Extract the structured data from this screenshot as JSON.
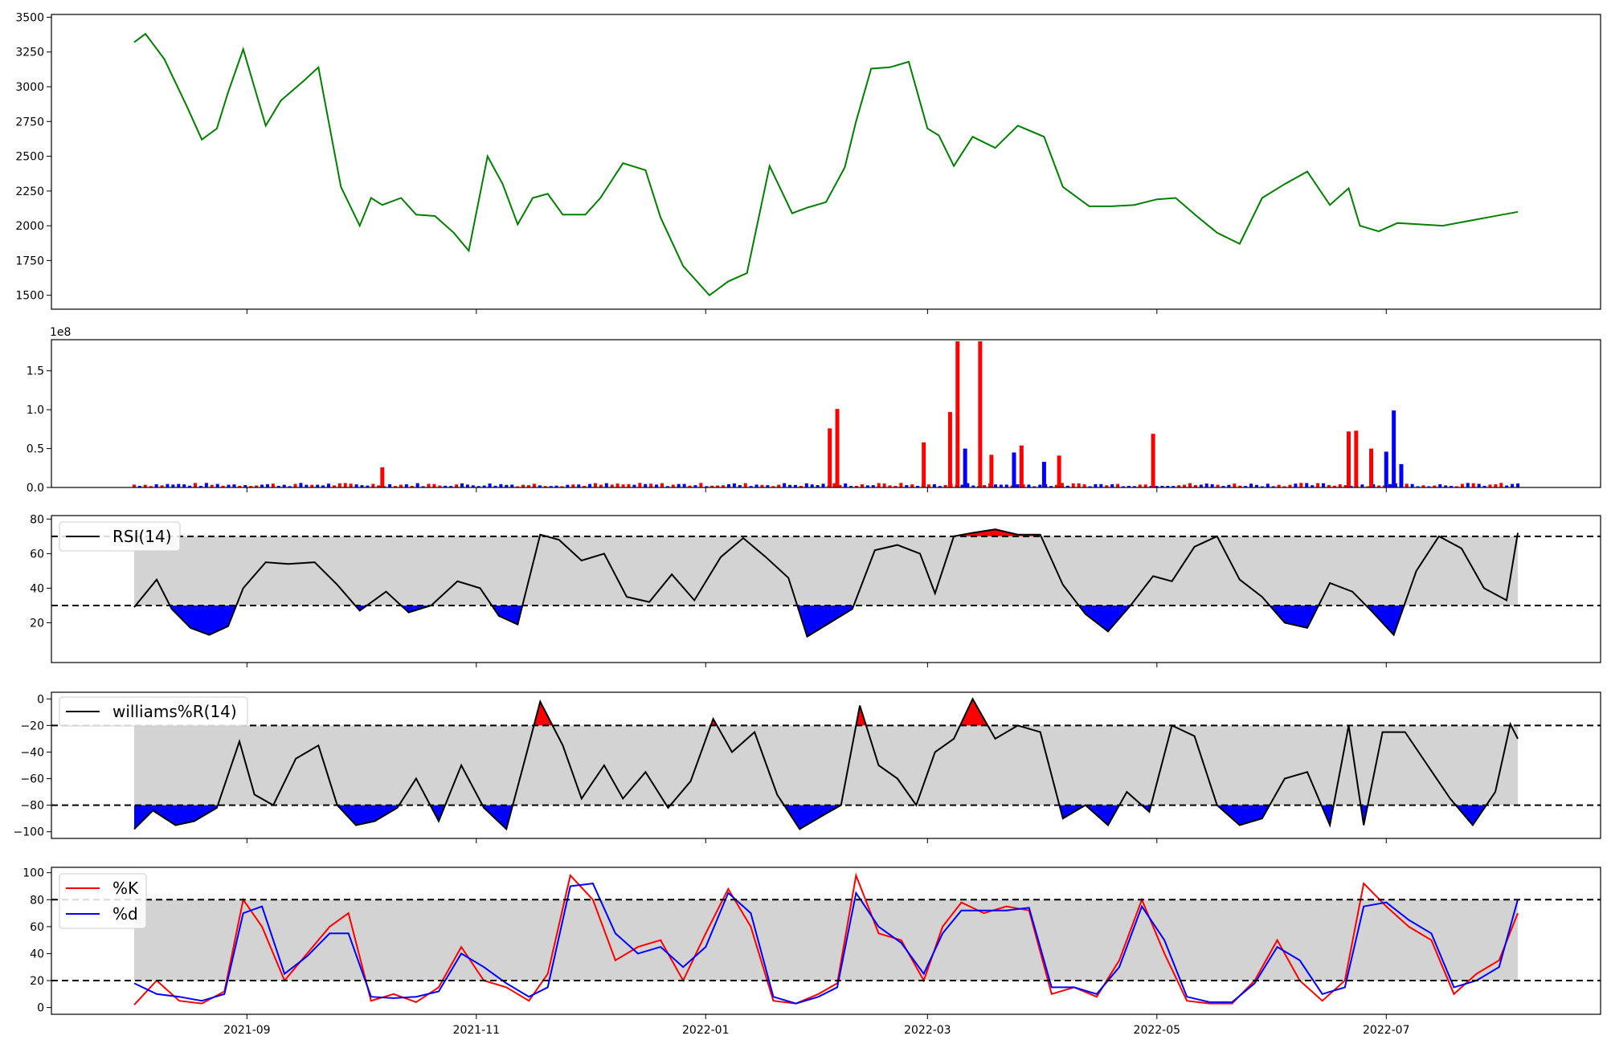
{
  "chart_data": [
    {
      "id": "price",
      "type": "line",
      "series": [
        {
          "color": "#008000"
        }
      ],
      "x_start": "2021-08-02",
      "x_end": "2022-08-05",
      "x_samples": [
        "2021-08-02",
        "2021-08-05",
        "2021-08-10",
        "2021-08-16",
        "2021-08-20",
        "2021-08-24",
        "2021-08-27",
        "2021-08-31",
        "2021-09-06",
        "2021-09-10",
        "2021-09-16",
        "2021-09-20",
        "2021-09-26",
        "2021-10-01",
        "2021-10-04",
        "2021-10-07",
        "2021-10-12",
        "2021-10-16",
        "2021-10-21",
        "2021-10-26",
        "2021-10-30",
        "2021-11-04",
        "2021-11-08",
        "2021-11-12",
        "2021-11-16",
        "2021-11-20",
        "2021-11-24",
        "2021-11-30",
        "2021-12-04",
        "2021-12-10",
        "2021-12-16",
        "2021-12-20",
        "2021-12-26",
        "2022-01-02",
        "2022-01-07",
        "2022-01-12",
        "2022-01-18",
        "2022-01-24",
        "2022-01-28",
        "2022-02-02",
        "2022-02-07",
        "2022-02-10",
        "2022-02-14",
        "2022-02-19",
        "2022-02-24",
        "2022-03-01",
        "2022-03-04",
        "2022-03-08",
        "2022-03-13",
        "2022-03-19",
        "2022-03-25",
        "2022-04-01",
        "2022-04-06",
        "2022-04-13",
        "2022-04-19",
        "2022-04-25",
        "2022-05-01",
        "2022-05-06",
        "2022-05-12",
        "2022-05-17",
        "2022-05-23",
        "2022-05-29",
        "2022-06-04",
        "2022-06-10",
        "2022-06-16",
        "2022-06-21",
        "2022-06-24",
        "2022-06-29",
        "2022-07-04",
        "2022-07-10",
        "2022-07-16",
        "2022-07-22",
        "2022-07-28",
        "2022-08-05"
      ],
      "values": [
        3320,
        3380,
        3200,
        2860,
        2620,
        2700,
        2960,
        3270,
        2720,
        2900,
        3040,
        3140,
        2280,
        2000,
        2200,
        2150,
        2200,
        2080,
        2070,
        1950,
        1820,
        2500,
        2300,
        2010,
        2200,
        2230,
        2080,
        2080,
        2200,
        2450,
        2400,
        2060,
        1710,
        1500,
        1600,
        1660,
        2430,
        2090,
        2130,
        2170,
        2420,
        2750,
        3130,
        3140,
        3180,
        2700,
        2650,
        2430,
        2640,
        2560,
        2720,
        2640,
        2280,
        2140,
        2140,
        2150,
        2190,
        2200,
        2060,
        1950,
        1870,
        2200,
        2300,
        2390,
        2150,
        2270,
        2000,
        1960,
        2020,
        2010,
        2000,
        2030,
        2060,
        2100
      ],
      "ylim": [
        1400,
        3520
      ],
      "yticks": [
        "1500",
        "1750",
        "2000",
        "2250",
        "2500",
        "2750",
        "3000",
        "3250",
        "3500"
      ],
      "ytick_values": [
        1500,
        1750,
        2000,
        2250,
        2500,
        2750,
        3000,
        3250,
        3500
      ]
    },
    {
      "id": "volume",
      "type": "bar",
      "colors": {
        "up": "#ff0000",
        "down": "#0000ff"
      },
      "offset_label": "1e8",
      "x_start": "2021-08-02",
      "x_end": "2022-08-05",
      "bar_count": 250,
      "spikes": [
        {
          "x": "2021-10-07",
          "value": 0.26,
          "color": "#ff0000"
        },
        {
          "x": "2022-02-03",
          "value": 0.76,
          "color": "#ff0000"
        },
        {
          "x": "2022-02-05",
          "value": 1.01,
          "color": "#ff0000"
        },
        {
          "x": "2022-02-28",
          "value": 0.58,
          "color": "#ff0000"
        },
        {
          "x": "2022-03-07",
          "value": 0.97,
          "color": "#ff0000"
        },
        {
          "x": "2022-03-09",
          "value": 1.88,
          "color": "#ff0000"
        },
        {
          "x": "2022-03-11",
          "value": 0.5,
          "color": "#0000ff"
        },
        {
          "x": "2022-03-15",
          "value": 1.88,
          "color": "#ff0000"
        },
        {
          "x": "2022-03-18",
          "value": 0.42,
          "color": "#ff0000"
        },
        {
          "x": "2022-03-24",
          "value": 0.45,
          "color": "#0000ff"
        },
        {
          "x": "2022-03-26",
          "value": 0.54,
          "color": "#ff0000"
        },
        {
          "x": "2022-04-01",
          "value": 0.33,
          "color": "#0000ff"
        },
        {
          "x": "2022-04-05",
          "value": 0.41,
          "color": "#ff0000"
        },
        {
          "x": "2022-04-30",
          "value": 0.69,
          "color": "#ff0000"
        },
        {
          "x": "2022-06-21",
          "value": 0.72,
          "color": "#ff0000"
        },
        {
          "x": "2022-06-23",
          "value": 0.73,
          "color": "#ff0000"
        },
        {
          "x": "2022-06-27",
          "value": 0.5,
          "color": "#ff0000"
        },
        {
          "x": "2022-07-01",
          "value": 0.46,
          "color": "#0000ff"
        },
        {
          "x": "2022-07-03",
          "value": 0.99,
          "color": "#0000ff"
        },
        {
          "x": "2022-07-05",
          "value": 0.3,
          "color": "#0000ff"
        }
      ],
      "ylim": [
        0,
        1.9
      ],
      "yticks": [
        "0.0",
        "0.5",
        "1.0",
        "1.5"
      ],
      "ytick_values": [
        0,
        0.5,
        1.0,
        1.5
      ]
    },
    {
      "id": "rsi",
      "type": "line",
      "series": [
        {
          "name": "RSI(14)",
          "color": "#000000"
        }
      ],
      "thresholds": {
        "upper": 70,
        "lower": 30
      },
      "fills": {
        "band": "#d3d3d3",
        "above": "#ff0000",
        "below": "#0000ff"
      },
      "x_start": "2021-08-02",
      "x_end": "2022-08-05",
      "x_samples": [
        "2021-08-02",
        "2021-08-08",
        "2021-08-12",
        "2021-08-17",
        "2021-08-22",
        "2021-08-27",
        "2021-08-31",
        "2021-09-06",
        "2021-09-12",
        "2021-09-19",
        "2021-09-25",
        "2021-10-01",
        "2021-10-08",
        "2021-10-14",
        "2021-10-20",
        "2021-10-27",
        "2021-11-02",
        "2021-11-07",
        "2021-11-12",
        "2021-11-18",
        "2021-11-23",
        "2021-11-29",
        "2021-12-05",
        "2021-12-11",
        "2021-12-17",
        "2021-12-23",
        "2021-12-29",
        "2022-01-05",
        "2022-01-11",
        "2022-01-17",
        "2022-01-23",
        "2022-01-28",
        "2022-02-03",
        "2022-02-09",
        "2022-02-15",
        "2022-02-21",
        "2022-02-27",
        "2022-03-03",
        "2022-03-08",
        "2022-03-13",
        "2022-03-19",
        "2022-03-25",
        "2022-03-31",
        "2022-04-06",
        "2022-04-12",
        "2022-04-18",
        "2022-04-24",
        "2022-04-30",
        "2022-05-05",
        "2022-05-11",
        "2022-05-17",
        "2022-05-23",
        "2022-05-29",
        "2022-06-04",
        "2022-06-10",
        "2022-06-16",
        "2022-06-22",
        "2022-06-27",
        "2022-07-03",
        "2022-07-09",
        "2022-07-15",
        "2022-07-21",
        "2022-07-27",
        "2022-08-02",
        "2022-08-05"
      ],
      "values": [
        29,
        45,
        28,
        17,
        13,
        18,
        40,
        55,
        54,
        55,
        42,
        27,
        38,
        26,
        30,
        44,
        40,
        24,
        19,
        71,
        68,
        56,
        60,
        35,
        32,
        48,
        33,
        58,
        69,
        58,
        46,
        12,
        20,
        28,
        62,
        65,
        60,
        37,
        70,
        72,
        74,
        71,
        71,
        42,
        25,
        15,
        30,
        47,
        44,
        64,
        70,
        45,
        35,
        20,
        17,
        43,
        38,
        27,
        13,
        50,
        70,
        63,
        40,
        33,
        72
      ],
      "ylim": [
        -3,
        82
      ],
      "yticks": [
        "20",
        "40",
        "60",
        "80"
      ],
      "ytick_values": [
        20,
        40,
        60,
        80
      ]
    },
    {
      "id": "williams",
      "type": "line",
      "series": [
        {
          "name": "williams%R(14)",
          "color": "#000000"
        }
      ],
      "thresholds": {
        "upper": -20,
        "lower": -80
      },
      "fills": {
        "band": "#d3d3d3",
        "above": "#ff0000",
        "below": "#0000ff"
      },
      "x_start": "2021-08-02",
      "x_end": "2022-08-05",
      "x_samples": [
        "2021-08-02",
        "2021-08-07",
        "2021-08-13",
        "2021-08-18",
        "2021-08-24",
        "2021-08-30",
        "2021-09-03",
        "2021-09-08",
        "2021-09-14",
        "2021-09-20",
        "2021-09-25",
        "2021-09-30",
        "2021-10-05",
        "2021-10-11",
        "2021-10-16",
        "2021-10-22",
        "2021-10-28",
        "2021-11-03",
        "2021-11-09",
        "2021-11-14",
        "2021-11-18",
        "2021-11-24",
        "2021-11-29",
        "2021-12-05",
        "2021-12-10",
        "2021-12-16",
        "2021-12-22",
        "2021-12-28",
        "2022-01-03",
        "2022-01-08",
        "2022-01-14",
        "2022-01-20",
        "2022-01-26",
        "2022-02-01",
        "2022-02-06",
        "2022-02-11",
        "2022-02-16",
        "2022-02-21",
        "2022-02-26",
        "2022-03-03",
        "2022-03-08",
        "2022-03-13",
        "2022-03-19",
        "2022-03-25",
        "2022-03-31",
        "2022-04-06",
        "2022-04-12",
        "2022-04-18",
        "2022-04-23",
        "2022-04-29",
        "2022-05-05",
        "2022-05-11",
        "2022-05-17",
        "2022-05-23",
        "2022-05-29",
        "2022-06-04",
        "2022-06-10",
        "2022-06-16",
        "2022-06-21",
        "2022-06-25",
        "2022-06-30",
        "2022-07-06",
        "2022-07-12",
        "2022-07-18",
        "2022-07-24",
        "2022-07-30",
        "2022-08-03",
        "2022-08-05"
      ],
      "values": [
        -98,
        -84,
        -95,
        -92,
        -82,
        -32,
        -72,
        -80,
        -45,
        -35,
        -80,
        -95,
        -92,
        -82,
        -60,
        -92,
        -50,
        -82,
        -98,
        -45,
        -2,
        -35,
        -75,
        -50,
        -75,
        -55,
        -82,
        -62,
        -15,
        -40,
        -25,
        -72,
        -98,
        -88,
        -80,
        -5,
        -50,
        -60,
        -80,
        -40,
        -30,
        0,
        -30,
        -20,
        -25,
        -90,
        -80,
        -95,
        -70,
        -85,
        -20,
        -28,
        -80,
        -95,
        -90,
        -60,
        -55,
        -95,
        -20,
        -95,
        -25,
        -25,
        -50,
        -75,
        -95,
        -70,
        -19,
        -30
      ],
      "ylim": [
        -105,
        5
      ],
      "yticks": [
        "−100",
        "−80",
        "−60",
        "−40",
        "−20",
        "0"
      ],
      "ytick_values": [
        -100,
        -80,
        -60,
        -40,
        -20,
        0
      ]
    },
    {
      "id": "stochastic",
      "type": "line",
      "thresholds": {
        "upper": 80,
        "lower": 20
      },
      "fills": {
        "band": "#d3d3d3"
      },
      "x_start": "2021-08-02",
      "x_end": "2022-08-05",
      "x_samples": [
        "2021-08-02",
        "2021-08-08",
        "2021-08-14",
        "2021-08-20",
        "2021-08-26",
        "2021-08-31",
        "2021-09-05",
        "2021-09-11",
        "2021-09-17",
        "2021-09-23",
        "2021-09-28",
        "2021-10-04",
        "2021-10-10",
        "2021-10-16",
        "2021-10-22",
        "2021-10-28",
        "2021-11-03",
        "2021-11-09",
        "2021-11-15",
        "2021-11-20",
        "2021-11-26",
        "2021-12-02",
        "2021-12-08",
        "2021-12-14",
        "2021-12-20",
        "2021-12-26",
        "2022-01-01",
        "2022-01-07",
        "2022-01-13",
        "2022-01-19",
        "2022-01-25",
        "2022-01-31",
        "2022-02-05",
        "2022-02-10",
        "2022-02-16",
        "2022-02-22",
        "2022-02-28",
        "2022-03-05",
        "2022-03-10",
        "2022-03-16",
        "2022-03-22",
        "2022-03-28",
        "2022-04-03",
        "2022-04-09",
        "2022-04-15",
        "2022-04-21",
        "2022-04-27",
        "2022-05-03",
        "2022-05-09",
        "2022-05-15",
        "2022-05-21",
        "2022-05-27",
        "2022-06-02",
        "2022-06-08",
        "2022-06-14",
        "2022-06-20",
        "2022-06-25",
        "2022-07-01",
        "2022-07-07",
        "2022-07-13",
        "2022-07-19",
        "2022-07-25",
        "2022-07-31",
        "2022-08-05"
      ],
      "series": [
        {
          "name": "%K",
          "color": "#ff0000",
          "values": [
            2,
            20,
            5,
            3,
            12,
            80,
            60,
            20,
            40,
            60,
            70,
            5,
            10,
            4,
            15,
            45,
            20,
            15,
            5,
            25,
            98,
            80,
            35,
            45,
            50,
            20,
            55,
            88,
            60,
            5,
            3,
            10,
            18,
            98,
            55,
            50,
            20,
            60,
            78,
            70,
            75,
            72,
            10,
            15,
            8,
            35,
            80,
            40,
            5,
            3,
            3,
            20,
            50,
            20,
            5,
            20,
            92,
            75,
            60,
            50,
            10,
            25,
            35,
            70
          ]
        },
        {
          "name": "%d",
          "color": "#0000ff",
          "values": [
            18,
            10,
            8,
            5,
            10,
            70,
            75,
            25,
            38,
            55,
            55,
            8,
            7,
            8,
            12,
            40,
            30,
            18,
            8,
            15,
            90,
            92,
            55,
            40,
            45,
            30,
            45,
            85,
            70,
            8,
            3,
            8,
            15,
            85,
            60,
            48,
            25,
            55,
            72,
            72,
            72,
            74,
            15,
            15,
            10,
            30,
            75,
            50,
            8,
            4,
            4,
            18,
            45,
            35,
            10,
            15,
            75,
            78,
            65,
            55,
            15,
            20,
            30,
            80
          ]
        }
      ],
      "ylim": [
        -5,
        104
      ],
      "yticks": [
        "0",
        "20",
        "40",
        "60",
        "80",
        "100"
      ],
      "ytick_values": [
        0,
        20,
        40,
        60,
        80,
        100
      ]
    }
  ],
  "x_axis": {
    "tick_labels": [
      "2021-09",
      "2021-11",
      "2022-01",
      "2022-03",
      "2022-05",
      "2022-07"
    ],
    "tick_values": [
      "2021-09-01",
      "2021-11-01",
      "2022-01-01",
      "2022-03-01",
      "2022-05-01",
      "2022-07-01"
    ],
    "xlim": [
      "2021-07-11",
      "2022-08-27"
    ]
  }
}
